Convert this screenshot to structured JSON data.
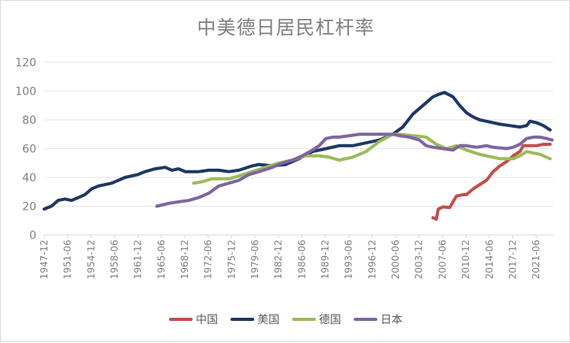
{
  "chart_data": {
    "type": "line",
    "title": "中美德日居民杠杆率",
    "xlabel": "",
    "ylabel": "",
    "ylim": [
      0,
      120
    ],
    "yticks": [
      "0",
      "20",
      "40",
      "60",
      "80",
      "100",
      "120"
    ],
    "xticks": [
      "1947-12",
      "1951-06",
      "1954-12",
      "1958-06",
      "1961-12",
      "1965-06",
      "1968-12",
      "1972-06",
      "1975-12",
      "1979-06",
      "1982-12",
      "1986-06",
      "1989-12",
      "1993-06",
      "1996-12",
      "2000-06",
      "2003-12",
      "2007-06",
      "2010-12",
      "2014-06",
      "2017-12",
      "2021-06"
    ],
    "x_start": 1947.92,
    "x_end": 2024.0,
    "grid": "horizontal",
    "legend_position": "bottom",
    "series": [
      {
        "name": "中国",
        "color": "#c0504d",
        "points": [
          [
            2006.0,
            12
          ],
          [
            2006.5,
            11
          ],
          [
            2006.8,
            18
          ],
          [
            2007.5,
            19.5
          ],
          [
            2008.5,
            19
          ],
          [
            2009.0,
            23
          ],
          [
            2009.5,
            27
          ],
          [
            2010.5,
            28
          ],
          [
            2011.0,
            28
          ],
          [
            2012.0,
            32
          ],
          [
            2013.0,
            35
          ],
          [
            2014.0,
            38
          ],
          [
            2015.0,
            44
          ],
          [
            2016.0,
            48
          ],
          [
            2017.0,
            51
          ],
          [
            2018.0,
            55
          ],
          [
            2019.0,
            58
          ],
          [
            2019.5,
            62
          ],
          [
            2020.5,
            62
          ],
          [
            2021.5,
            62
          ],
          [
            2022.5,
            63
          ],
          [
            2023.5,
            63
          ]
        ]
      },
      {
        "name": "美国",
        "color": "#1f3864",
        "points": [
          [
            1947.92,
            18
          ],
          [
            1949.0,
            20
          ],
          [
            1950.0,
            24
          ],
          [
            1951.0,
            25
          ],
          [
            1952.0,
            24
          ],
          [
            1953.0,
            26
          ],
          [
            1954.0,
            28
          ],
          [
            1955.0,
            32
          ],
          [
            1956.0,
            34
          ],
          [
            1958.0,
            36
          ],
          [
            1960.0,
            40
          ],
          [
            1961.9,
            42
          ],
          [
            1963.0,
            44
          ],
          [
            1964.5,
            46
          ],
          [
            1966.0,
            47
          ],
          [
            1967.0,
            45
          ],
          [
            1968.0,
            46
          ],
          [
            1969.0,
            44
          ],
          [
            1971.0,
            44
          ],
          [
            1972.5,
            45
          ],
          [
            1974.0,
            45
          ],
          [
            1975.5,
            44
          ],
          [
            1977.0,
            45
          ],
          [
            1979.0,
            48
          ],
          [
            1980.0,
            49
          ],
          [
            1982.0,
            48
          ],
          [
            1984.0,
            49
          ],
          [
            1986.0,
            53
          ],
          [
            1988.0,
            58
          ],
          [
            1990.0,
            60
          ],
          [
            1992.0,
            62
          ],
          [
            1994.0,
            62
          ],
          [
            1996.0,
            64
          ],
          [
            1998.0,
            66
          ],
          [
            2000.0,
            70
          ],
          [
            2001.5,
            75
          ],
          [
            2003.0,
            84
          ],
          [
            2004.5,
            90
          ],
          [
            2006.0,
            96
          ],
          [
            2007.0,
            98
          ],
          [
            2007.75,
            99
          ],
          [
            2009.0,
            96
          ],
          [
            2010.0,
            90
          ],
          [
            2011.0,
            85
          ],
          [
            2012.0,
            82
          ],
          [
            2013.0,
            80
          ],
          [
            2014.0,
            79
          ],
          [
            2016.0,
            77
          ],
          [
            2017.5,
            76
          ],
          [
            2019.0,
            75
          ],
          [
            2020.0,
            76
          ],
          [
            2020.5,
            79
          ],
          [
            2021.5,
            78
          ],
          [
            2022.5,
            76
          ],
          [
            2023.5,
            73
          ]
        ]
      },
      {
        "name": "德国",
        "color": "#9bbb59",
        "points": [
          [
            1970.25,
            36
          ],
          [
            1971.5,
            37
          ],
          [
            1973.0,
            39
          ],
          [
            1974.5,
            39
          ],
          [
            1975.5,
            39
          ],
          [
            1977.0,
            41
          ],
          [
            1979.0,
            44
          ],
          [
            1981.0,
            47
          ],
          [
            1983.0,
            50
          ],
          [
            1985.0,
            52
          ],
          [
            1987.0,
            55
          ],
          [
            1989.0,
            55
          ],
          [
            1990.5,
            54
          ],
          [
            1992.0,
            52
          ],
          [
            1994.0,
            54
          ],
          [
            1996.0,
            58
          ],
          [
            1998.0,
            65
          ],
          [
            2000.0,
            70
          ],
          [
            2001.0,
            70
          ],
          [
            2003.0,
            69
          ],
          [
            2005.0,
            68
          ],
          [
            2006.5,
            63
          ],
          [
            2008.0,
            60
          ],
          [
            2009.5,
            62
          ],
          [
            2011.0,
            59
          ],
          [
            2013.0,
            56
          ],
          [
            2015.0,
            54
          ],
          [
            2016.0,
            53
          ],
          [
            2017.0,
            53
          ],
          [
            2018.0,
            53
          ],
          [
            2019.0,
            55
          ],
          [
            2020.0,
            58
          ],
          [
            2021.0,
            57
          ],
          [
            2022.0,
            56
          ],
          [
            2023.5,
            53
          ]
        ]
      },
      {
        "name": "日本",
        "color": "#8064a2",
        "points": [
          [
            1964.75,
            20
          ],
          [
            1966.5,
            22
          ],
          [
            1968.0,
            23
          ],
          [
            1969.5,
            24
          ],
          [
            1971.0,
            26
          ],
          [
            1972.5,
            29
          ],
          [
            1974.0,
            34
          ],
          [
            1975.5,
            36
          ],
          [
            1977.0,
            38
          ],
          [
            1978.5,
            42
          ],
          [
            1980.0,
            44
          ],
          [
            1982.0,
            47
          ],
          [
            1983.5,
            50
          ],
          [
            1985.0,
            52
          ],
          [
            1986.5,
            55
          ],
          [
            1988.0,
            59
          ],
          [
            1989.0,
            62
          ],
          [
            1990.0,
            67
          ],
          [
            1991.0,
            68
          ],
          [
            1992.0,
            68
          ],
          [
            1993.5,
            69
          ],
          [
            1995.0,
            70
          ],
          [
            1997.0,
            70
          ],
          [
            1999.0,
            70
          ],
          [
            2000.0,
            70
          ],
          [
            2001.0,
            69
          ],
          [
            2002.5,
            68
          ],
          [
            2004.0,
            66
          ],
          [
            2005.0,
            62
          ],
          [
            2006.0,
            61
          ],
          [
            2007.5,
            60
          ],
          [
            2009.0,
            59
          ],
          [
            2010.0,
            62
          ],
          [
            2011.0,
            62
          ],
          [
            2012.5,
            61
          ],
          [
            2014.0,
            62
          ],
          [
            2015.0,
            61
          ],
          [
            2017.0,
            60
          ],
          [
            2018.0,
            61
          ],
          [
            2019.0,
            63
          ],
          [
            2020.0,
            67
          ],
          [
            2021.0,
            68
          ],
          [
            2022.0,
            68
          ],
          [
            2023.0,
            67
          ],
          [
            2023.8,
            66
          ]
        ]
      }
    ]
  }
}
